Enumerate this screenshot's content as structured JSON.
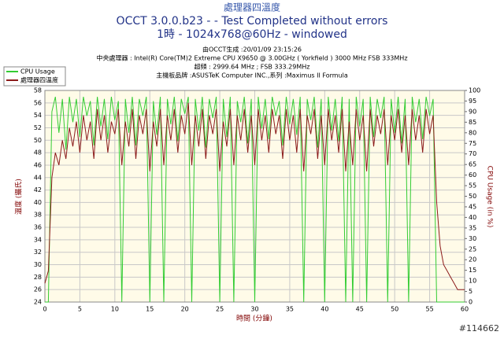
{
  "chart_data": {
    "type": "line",
    "title": "處理器四溫度",
    "subtitle": "OCCT 3.0.0.b23 -  - Test Completed without errors",
    "subtitle2": "1時 - 1024x768@60Hz - windowed",
    "info": [
      "由OCCT生成 :20/01/09 23:15:26",
      "中央處理器 : Intel(R) Core(TM)2 Extreme CPU X9650 @ 3.00GHz ( Yorkfield ) 3000 MHz FSB 333MHz",
      "超頻 : 2999.64 MHz ; FSB 333.29MHz",
      "主機板品牌 :ASUSTeK Computer INC.,系列 :Maximus II Formula"
    ],
    "xlabel": "時間 (分鐘)",
    "ylabel": "溫度 (攝氏)",
    "y2label": "CPU Usage (in %)",
    "watermark": "#114662",
    "legend": "top-left",
    "grid": true,
    "xlim": [
      0,
      60
    ],
    "xticks": [
      0,
      5,
      10,
      15,
      20,
      25,
      30,
      35,
      40,
      45,
      50,
      55,
      60
    ],
    "ylim": [
      24,
      58
    ],
    "yticks": [
      24,
      26,
      28,
      30,
      32,
      34,
      36,
      38,
      40,
      42,
      44,
      46,
      48,
      50,
      52,
      54,
      56,
      58
    ],
    "y2lim": [
      0,
      100
    ],
    "y2ticks": [
      0,
      5,
      10,
      15,
      20,
      25,
      30,
      35,
      40,
      45,
      50,
      55,
      60,
      65,
      70,
      75,
      80,
      85,
      90,
      95,
      100
    ],
    "x": [
      0,
      0.5,
      1,
      1.5,
      2,
      2.5,
      3,
      3.5,
      4,
      4.5,
      5,
      5.5,
      6,
      6.5,
      7,
      7.5,
      8,
      8.5,
      9,
      9.5,
      10,
      10.5,
      11,
      11.5,
      12,
      12.5,
      13,
      13.5,
      14,
      14.5,
      15,
      15.5,
      16,
      16.5,
      17,
      17.5,
      18,
      18.5,
      19,
      19.5,
      20,
      20.5,
      21,
      21.5,
      22,
      22.5,
      23,
      23.5,
      24,
      24.5,
      25,
      25.5,
      26,
      26.5,
      27,
      27.5,
      28,
      28.5,
      29,
      29.5,
      30,
      30.5,
      31,
      31.5,
      32,
      32.5,
      33,
      33.5,
      34,
      34.5,
      35,
      35.5,
      36,
      36.5,
      37,
      37.5,
      38,
      38.5,
      39,
      39.5,
      40,
      40.5,
      41,
      41.5,
      42,
      42.5,
      43,
      43.5,
      44,
      44.5,
      45,
      45.5,
      46,
      46.5,
      47,
      47.5,
      48,
      48.5,
      49,
      49.5,
      50,
      50.5,
      51,
      51.5,
      52,
      52.5,
      53,
      53.5,
      54,
      54.5,
      55,
      55.5,
      56,
      56.5,
      57,
      57.5,
      58,
      58.5,
      59,
      59.5,
      60
    ],
    "series": [
      {
        "name": "CPU Usage",
        "color": "#33cc33",
        "axis": "y2",
        "values": [
          0,
          0,
          90,
          97,
          80,
          96,
          72,
          97,
          85,
          96,
          78,
          97,
          88,
          95,
          74,
          97,
          83,
          96,
          77,
          97,
          86,
          95,
          0,
          96,
          80,
          97,
          74,
          96,
          88,
          97,
          0,
          95,
          79,
          97,
          0,
          96,
          84,
          97,
          76,
          96,
          89,
          97,
          0,
          96,
          81,
          97,
          73,
          96,
          87,
          97,
          0,
          96,
          78,
          97,
          0,
          95,
          85,
          97,
          75,
          96,
          0,
          97,
          82,
          96,
          77,
          97,
          88,
          95,
          74,
          97,
          84,
          96,
          79,
          97,
          0,
          96,
          86,
          97,
          73,
          96,
          0,
          97,
          81,
          96,
          76,
          97,
          0,
          96,
          0,
          97,
          83,
          96,
          0,
          97,
          78,
          96,
          87,
          97,
          0,
          96,
          80,
          97,
          75,
          96,
          0,
          97,
          85,
          96,
          77,
          97,
          88,
          96,
          0,
          0,
          0,
          0,
          0,
          0,
          0,
          0,
          0
        ]
      },
      {
        "name": "處理器四溫度",
        "color": "#8b1a1a",
        "values": [
          27,
          29,
          44,
          48,
          46,
          50,
          47,
          52,
          49,
          53,
          48,
          54,
          50,
          53,
          47,
          55,
          50,
          54,
          48,
          53,
          51,
          55,
          46,
          53,
          49,
          55,
          47,
          54,
          51,
          55,
          45,
          53,
          49,
          55,
          46,
          54,
          50,
          55,
          48,
          54,
          51,
          56,
          46,
          54,
          49,
          55,
          47,
          54,
          51,
          55,
          45,
          53,
          49,
          55,
          46,
          54,
          50,
          55,
          48,
          54,
          46,
          55,
          50,
          54,
          48,
          55,
          51,
          54,
          47,
          55,
          50,
          54,
          48,
          55,
          45,
          54,
          51,
          55,
          47,
          54,
          46,
          55,
          50,
          54,
          48,
          55,
          45,
          53,
          46,
          55,
          50,
          54,
          45,
          55,
          49,
          54,
          51,
          55,
          46,
          54,
          50,
          55,
          48,
          54,
          46,
          55,
          50,
          54,
          48,
          55,
          51,
          54,
          40,
          33,
          30,
          29,
          28,
          27,
          26,
          26,
          26
        ]
      }
    ]
  }
}
